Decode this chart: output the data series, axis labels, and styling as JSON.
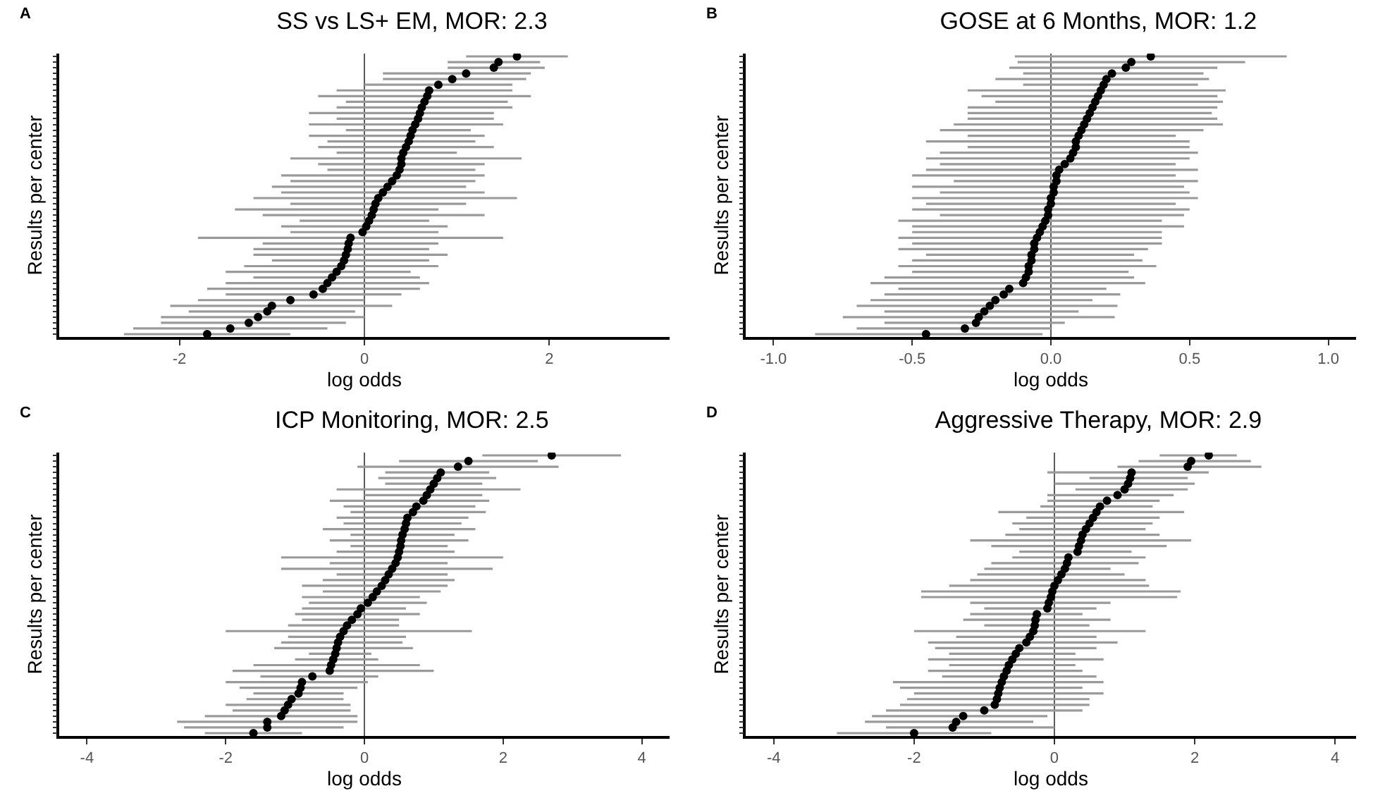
{
  "chart_data": [
    {
      "type": "scatter",
      "orientation": "horizontal",
      "title": "SS vs LS+ EM, MOR: 2.3",
      "xlabel": "log odds",
      "ylabel": "Results per center",
      "annotations": [
        "A"
      ],
      "color": "#000000",
      "marker": "circle",
      "tick_labels": "x",
      "xlim": [
        -3.3,
        3.3
      ],
      "xticks": [
        -2,
        0,
        2
      ],
      "ref_lines": [
        {
          "axis": "x",
          "value": 0,
          "color": "#333333"
        }
      ],
      "categories": [
        null,
        null,
        null,
        null,
        null,
        null,
        null,
        null,
        null,
        null,
        null,
        null,
        null,
        null,
        null,
        null,
        null,
        null,
        null,
        null,
        null,
        null,
        null,
        null,
        null,
        null,
        null,
        null,
        null,
        null,
        null,
        null,
        null,
        null,
        null,
        null,
        null,
        null,
        null,
        null,
        null,
        null,
        null,
        null,
        null,
        null,
        null,
        null,
        null,
        null
      ],
      "values": [
        1.65,
        1.45,
        1.4,
        1.1,
        0.95,
        0.8,
        0.7,
        0.68,
        0.65,
        0.62,
        0.6,
        0.58,
        0.55,
        0.52,
        0.5,
        0.48,
        0.45,
        0.42,
        0.4,
        0.4,
        0.38,
        0.35,
        0.3,
        0.25,
        0.2,
        0.15,
        0.12,
        0.1,
        0.08,
        0.05,
        0.02,
        -0.02,
        -0.15,
        -0.17,
        -0.18,
        -0.2,
        -0.22,
        -0.25,
        -0.3,
        -0.35,
        -0.4,
        -0.45,
        -0.55,
        -0.8,
        -1.0,
        -1.05,
        -1.15,
        -1.25,
        -1.45,
        -1.7
      ],
      "errors": [
        [
          1.1,
          2.2
        ],
        [
          0.9,
          1.9
        ],
        [
          0.9,
          1.95
        ],
        [
          0.2,
          1.8
        ],
        [
          0.2,
          1.75
        ],
        [
          0.0,
          1.6
        ],
        [
          -0.3,
          1.6
        ],
        [
          -0.5,
          1.8
        ],
        [
          -0.2,
          1.55
        ],
        [
          -0.3,
          1.6
        ],
        [
          -0.6,
          1.4
        ],
        [
          -0.3,
          1.4
        ],
        [
          -0.6,
          1.5
        ],
        [
          -0.2,
          1.15
        ],
        [
          -0.6,
          1.3
        ],
        [
          -0.4,
          1.2
        ],
        [
          -0.5,
          1.4
        ],
        [
          -0.3,
          1.0
        ],
        [
          -0.8,
          1.7
        ],
        [
          -0.5,
          1.3
        ],
        [
          -0.4,
          1.2
        ],
        [
          -0.9,
          1.3
        ],
        [
          -0.8,
          1.2
        ],
        [
          -1.0,
          1.1
        ],
        [
          -0.9,
          1.3
        ],
        [
          -1.2,
          1.65
        ],
        [
          -0.8,
          1.1
        ],
        [
          -1.4,
          0.8
        ],
        [
          -1.1,
          1.3
        ],
        [
          -0.7,
          0.7
        ],
        [
          -0.9,
          0.9
        ],
        [
          -0.8,
          0.8
        ],
        [
          -1.8,
          1.5
        ],
        [
          -1.1,
          0.8
        ],
        [
          -1.2,
          0.7
        ],
        [
          -1.2,
          0.9
        ],
        [
          -1.0,
          0.7
        ],
        [
          -1.3,
          0.8
        ],
        [
          -1.5,
          0.5
        ],
        [
          -1.2,
          0.6
        ],
        [
          -1.5,
          0.7
        ],
        [
          -1.7,
          0.6
        ],
        [
          -1.5,
          0.4
        ],
        [
          -1.8,
          0.0
        ],
        [
          -2.1,
          0.3
        ],
        [
          -1.9,
          -0.1
        ],
        [
          -2.2,
          0.0
        ],
        [
          -2.2,
          -0.2
        ],
        [
          -2.5,
          -0.4
        ],
        [
          -2.6,
          -0.8
        ]
      ]
    },
    {
      "type": "scatter",
      "orientation": "horizontal",
      "title": "GOSE at 6 Months, MOR: 1.2",
      "xlabel": "log odds",
      "ylabel": "Results per center",
      "annotations": [
        "B"
      ],
      "color": "#000000",
      "marker": "circle",
      "tick_labels": "x",
      "xlim": [
        -1.1,
        1.1
      ],
      "xticks": [
        {
          "value": -1,
          "label": "-1.0"
        },
        -0.5,
        {
          "value": 0,
          "label": "0.0"
        },
        0.5,
        {
          "value": 1,
          "label": "1.0"
        }
      ],
      "ref_lines": [
        {
          "axis": "x",
          "value": 0,
          "color": "#333333"
        }
      ],
      "categories": [
        null,
        null,
        null,
        null,
        null,
        null,
        null,
        null,
        null,
        null,
        null,
        null,
        null,
        null,
        null,
        null,
        null,
        null,
        null,
        null,
        null,
        null,
        null,
        null,
        null,
        null,
        null,
        null,
        null,
        null,
        null,
        null,
        null,
        null,
        null,
        null,
        null,
        null,
        null,
        null,
        null,
        null,
        null,
        null,
        null,
        null,
        null,
        null,
        null,
        null
      ],
      "values": [
        0.36,
        0.29,
        0.27,
        0.22,
        0.2,
        0.19,
        0.18,
        0.17,
        0.16,
        0.15,
        0.14,
        0.13,
        0.12,
        0.11,
        0.1,
        0.09,
        0.09,
        0.08,
        0.07,
        0.05,
        0.03,
        0.02,
        0.02,
        0.01,
        0.01,
        0.0,
        0.0,
        -0.01,
        -0.01,
        -0.02,
        -0.03,
        -0.04,
        -0.05,
        -0.06,
        -0.06,
        -0.07,
        -0.07,
        -0.08,
        -0.08,
        -0.09,
        -0.1,
        -0.15,
        -0.17,
        -0.2,
        -0.22,
        -0.24,
        -0.26,
        -0.27,
        -0.31,
        -0.45
      ],
      "errors": [
        [
          -0.13,
          0.85
        ],
        [
          -0.12,
          0.7
        ],
        [
          -0.15,
          0.6
        ],
        [
          -0.1,
          0.55
        ],
        [
          -0.2,
          0.57
        ],
        [
          -0.1,
          0.53
        ],
        [
          -0.3,
          0.63
        ],
        [
          -0.25,
          0.6
        ],
        [
          -0.2,
          0.62
        ],
        [
          -0.3,
          0.6
        ],
        [
          -0.3,
          0.58
        ],
        [
          -0.3,
          0.6
        ],
        [
          -0.35,
          0.62
        ],
        [
          -0.4,
          0.55
        ],
        [
          -0.3,
          0.45
        ],
        [
          -0.45,
          0.5
        ],
        [
          -0.3,
          0.5
        ],
        [
          -0.4,
          0.53
        ],
        [
          -0.45,
          0.5
        ],
        [
          -0.4,
          0.45
        ],
        [
          -0.45,
          0.53
        ],
        [
          -0.5,
          0.45
        ],
        [
          -0.35,
          0.53
        ],
        [
          -0.5,
          0.48
        ],
        [
          -0.4,
          0.5
        ],
        [
          -0.5,
          0.53
        ],
        [
          -0.45,
          0.45
        ],
        [
          -0.5,
          0.5
        ],
        [
          -0.4,
          0.48
        ],
        [
          -0.55,
          0.4
        ],
        [
          -0.5,
          0.48
        ],
        [
          -0.5,
          0.4
        ],
        [
          -0.55,
          0.4
        ],
        [
          -0.5,
          0.4
        ],
        [
          -0.55,
          0.35
        ],
        [
          -0.45,
          0.3
        ],
        [
          -0.5,
          0.33
        ],
        [
          -0.55,
          0.38
        ],
        [
          -0.5,
          0.28
        ],
        [
          -0.6,
          0.3
        ],
        [
          -0.65,
          0.34
        ],
        [
          -0.55,
          0.2
        ],
        [
          -0.6,
          0.25
        ],
        [
          -0.65,
          0.15
        ],
        [
          -0.7,
          0.24
        ],
        [
          -0.6,
          0.1
        ],
        [
          -0.75,
          0.23
        ],
        [
          -0.6,
          0.05
        ],
        [
          -0.7,
          0.0
        ],
        [
          -0.85,
          -0.03
        ]
      ]
    },
    {
      "type": "scatter",
      "orientation": "horizontal",
      "title": "ICP Monitoring, MOR: 2.5",
      "xlabel": "log odds",
      "ylabel": "Results per center",
      "annotations": [
        "C"
      ],
      "color": "#000000",
      "marker": "circle",
      "tick_labels": "x",
      "xlim": [
        -4.4,
        4.4
      ],
      "xticks": [
        -4,
        -2,
        0,
        2,
        4
      ],
      "ref_lines": [
        {
          "axis": "x",
          "value": 0,
          "color": "#333333"
        }
      ],
      "categories": [
        null,
        null,
        null,
        null,
        null,
        null,
        null,
        null,
        null,
        null,
        null,
        null,
        null,
        null,
        null,
        null,
        null,
        null,
        null,
        null,
        null,
        null,
        null,
        null,
        null,
        null,
        null,
        null,
        null,
        null,
        null,
        null,
        null,
        null,
        null,
        null,
        null,
        null,
        null,
        null,
        null,
        null,
        null,
        null,
        null,
        null,
        null,
        null,
        null,
        null
      ],
      "values": [
        2.7,
        1.5,
        1.35,
        1.1,
        1.05,
        1.0,
        0.95,
        0.9,
        0.85,
        0.75,
        0.7,
        0.62,
        0.6,
        0.58,
        0.55,
        0.53,
        0.52,
        0.5,
        0.48,
        0.45,
        0.4,
        0.35,
        0.3,
        0.25,
        0.18,
        0.12,
        0.05,
        -0.05,
        -0.1,
        -0.18,
        -0.25,
        -0.3,
        -0.35,
        -0.38,
        -0.4,
        -0.42,
        -0.45,
        -0.48,
        -0.5,
        -0.75,
        -0.9,
        -0.92,
        -0.95,
        -1.05,
        -1.1,
        -1.15,
        -1.2,
        -1.4,
        -1.4,
        -1.6
      ],
      "errors": [
        [
          1.7,
          3.7
        ],
        [
          0.5,
          2.5
        ],
        [
          -0.1,
          2.8
        ],
        [
          0.3,
          1.8
        ],
        [
          0.2,
          1.9
        ],
        [
          0.3,
          1.7
        ],
        [
          -0.4,
          2.25
        ],
        [
          0.0,
          1.7
        ],
        [
          -0.5,
          1.8
        ],
        [
          -0.3,
          1.6
        ],
        [
          -0.2,
          1.75
        ],
        [
          -0.4,
          1.5
        ],
        [
          -0.3,
          1.4
        ],
        [
          -0.6,
          1.6
        ],
        [
          -0.2,
          1.3
        ],
        [
          -0.5,
          1.5
        ],
        [
          -0.2,
          1.2
        ],
        [
          -0.4,
          1.3
        ],
        [
          -1.2,
          2.0
        ],
        [
          -0.5,
          1.2
        ],
        [
          -1.2,
          1.85
        ],
        [
          -0.4,
          1.2
        ],
        [
          -0.6,
          1.3
        ],
        [
          -0.9,
          1.2
        ],
        [
          -0.6,
          1.1
        ],
        [
          -0.9,
          0.8
        ],
        [
          -0.8,
          0.9
        ],
        [
          -0.9,
          0.6
        ],
        [
          -1.0,
          0.8
        ],
        [
          -0.9,
          0.5
        ],
        [
          -1.1,
          0.5
        ],
        [
          -2.0,
          1.55
        ],
        [
          -1.1,
          0.6
        ],
        [
          -1.2,
          0.55
        ],
        [
          -1.3,
          0.7
        ],
        [
          -0.8,
          0.1
        ],
        [
          -1.0,
          0.2
        ],
        [
          -1.6,
          0.8
        ],
        [
          -1.9,
          1.0
        ],
        [
          -1.5,
          0.2
        ],
        [
          -2.0,
          0.05
        ],
        [
          -1.8,
          -0.1
        ],
        [
          -1.6,
          -0.3
        ],
        [
          -1.7,
          -0.3
        ],
        [
          -2.0,
          -0.2
        ],
        [
          -1.9,
          -0.2
        ],
        [
          -2.3,
          -0.1
        ],
        [
          -2.7,
          -0.1
        ],
        [
          -2.6,
          -0.3
        ],
        [
          -2.3,
          -0.9
        ]
      ]
    },
    {
      "type": "scatter",
      "orientation": "horizontal",
      "title": "Aggressive Therapy, MOR: 2.9",
      "xlabel": "log odds",
      "ylabel": "Results per center",
      "annotations": [
        "D"
      ],
      "color": "#000000",
      "marker": "circle",
      "tick_labels": "x",
      "xlim": [
        -4.4,
        4.3
      ],
      "xticks": [
        -4,
        -2,
        0,
        2,
        4
      ],
      "ref_lines": [
        {
          "axis": "x",
          "value": 0,
          "color": "#333333"
        }
      ],
      "categories": [
        null,
        null,
        null,
        null,
        null,
        null,
        null,
        null,
        null,
        null,
        null,
        null,
        null,
        null,
        null,
        null,
        null,
        null,
        null,
        null,
        null,
        null,
        null,
        null,
        null,
        null,
        null,
        null,
        null,
        null,
        null,
        null,
        null,
        null,
        null,
        null,
        null,
        null,
        null,
        null,
        null,
        null,
        null,
        null,
        null,
        null,
        null,
        null,
        null,
        null
      ],
      "values": [
        2.2,
        1.95,
        1.9,
        1.1,
        1.08,
        1.05,
        1.0,
        0.9,
        0.75,
        0.65,
        0.6,
        0.55,
        0.5,
        0.45,
        0.4,
        0.38,
        0.35,
        0.33,
        0.2,
        0.18,
        0.15,
        0.1,
        0.05,
        0.0,
        -0.03,
        -0.05,
        -0.08,
        -0.1,
        -0.25,
        -0.27,
        -0.28,
        -0.3,
        -0.35,
        -0.4,
        -0.5,
        -0.55,
        -0.6,
        -0.65,
        -0.68,
        -0.72,
        -0.75,
        -0.78,
        -0.8,
        -0.82,
        -0.85,
        -1.0,
        -1.3,
        -1.4,
        -1.45,
        -2.0
      ],
      "errors": [
        [
          1.5,
          2.6
        ],
        [
          1.2,
          2.8
        ],
        [
          0.9,
          2.95
        ],
        [
          -0.1,
          2.2
        ],
        [
          0.5,
          1.9
        ],
        [
          0.0,
          2.0
        ],
        [
          0.3,
          1.9
        ],
        [
          -0.1,
          1.7
        ],
        [
          -0.1,
          1.5
        ],
        [
          -0.2,
          1.4
        ],
        [
          -0.8,
          1.85
        ],
        [
          -0.4,
          1.5
        ],
        [
          -0.6,
          1.4
        ],
        [
          -0.5,
          1.3
        ],
        [
          -0.7,
          1.5
        ],
        [
          -1.2,
          1.95
        ],
        [
          -0.9,
          1.6
        ],
        [
          -0.5,
          1.1
        ],
        [
          -0.6,
          1.3
        ],
        [
          -0.9,
          1.2
        ],
        [
          -1.0,
          0.8
        ],
        [
          -1.1,
          1.0
        ],
        [
          -1.2,
          1.3
        ],
        [
          -1.5,
          1.35
        ],
        [
          -1.9,
          1.8
        ],
        [
          -1.9,
          1.75
        ],
        [
          -1.2,
          0.8
        ],
        [
          -1.0,
          0.6
        ],
        [
          -1.2,
          0.4
        ],
        [
          -1.3,
          0.8
        ],
        [
          -1.0,
          0.5
        ],
        [
          -2.0,
          1.3
        ],
        [
          -1.4,
          0.6
        ],
        [
          -1.8,
          0.9
        ],
        [
          -1.7,
          0.6
        ],
        [
          -1.5,
          0.3
        ],
        [
          -1.8,
          0.7
        ],
        [
          -1.5,
          0.3
        ],
        [
          -1.8,
          0.4
        ],
        [
          -1.6,
          0.6
        ],
        [
          -2.3,
          0.7
        ],
        [
          -2.2,
          0.4
        ],
        [
          -2.0,
          0.7
        ],
        [
          -2.1,
          0.5
        ],
        [
          -2.2,
          0.5
        ],
        [
          -2.4,
          0.4
        ],
        [
          -2.6,
          -0.1
        ],
        [
          -2.7,
          -0.3
        ],
        [
          -2.4,
          0.0
        ],
        [
          -3.1,
          -0.9
        ]
      ]
    }
  ]
}
